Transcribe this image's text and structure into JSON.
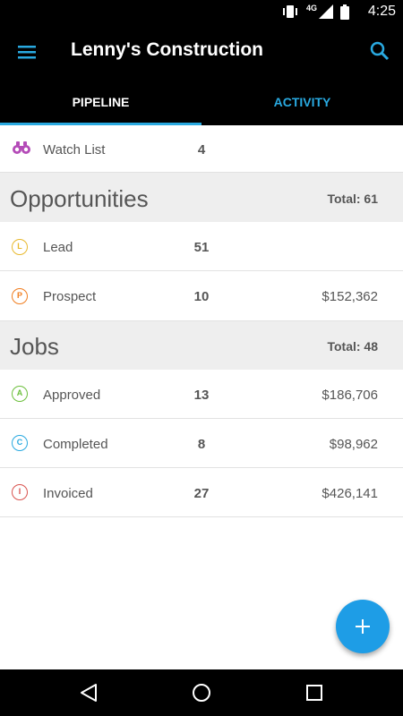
{
  "status_bar": {
    "time": "4:25",
    "network": "4G",
    "icons": [
      "vibrate-icon",
      "signal-icon",
      "battery-icon"
    ]
  },
  "app_bar": {
    "title": "Lenny's Construction",
    "menu_icon": "menu-icon",
    "search_icon": "search-icon"
  },
  "tabs": [
    {
      "label": "PIPELINE",
      "selected": true
    },
    {
      "label": "ACTIVITY",
      "selected": false
    }
  ],
  "watch_list": {
    "label": "Watch List",
    "count": "4",
    "icon": "binoculars-icon"
  },
  "opportunities": {
    "heading": "Opportunities",
    "total": "Total: 61",
    "items": [
      {
        "letter": "L",
        "label": "Lead",
        "count": "51",
        "amount": "",
        "color": "#e8b92e"
      },
      {
        "letter": "P",
        "label": "Prospect",
        "count": "10",
        "amount": "$152,362",
        "color": "#f07d1e"
      }
    ]
  },
  "jobs": {
    "heading": "Jobs",
    "total": "Total: 48",
    "items": [
      {
        "letter": "A",
        "label": "Approved",
        "count": "13",
        "amount": "$186,706",
        "color": "#6cbf3c"
      },
      {
        "letter": "C",
        "label": "Completed",
        "count": "8",
        "amount": "$98,962",
        "color": "#29a9e0"
      },
      {
        "letter": "I",
        "label": "Invoiced",
        "count": "27",
        "amount": "$426,141",
        "color": "#d9534f"
      }
    ]
  },
  "fab": {
    "icon": "plus-icon"
  },
  "nav_bar": {
    "icons": [
      "back-icon",
      "home-icon",
      "recents-icon"
    ]
  },
  "colors": {
    "accent": "#29a9e0",
    "fab": "#1e9de6",
    "watch_list_icon": "#b44bb8"
  }
}
